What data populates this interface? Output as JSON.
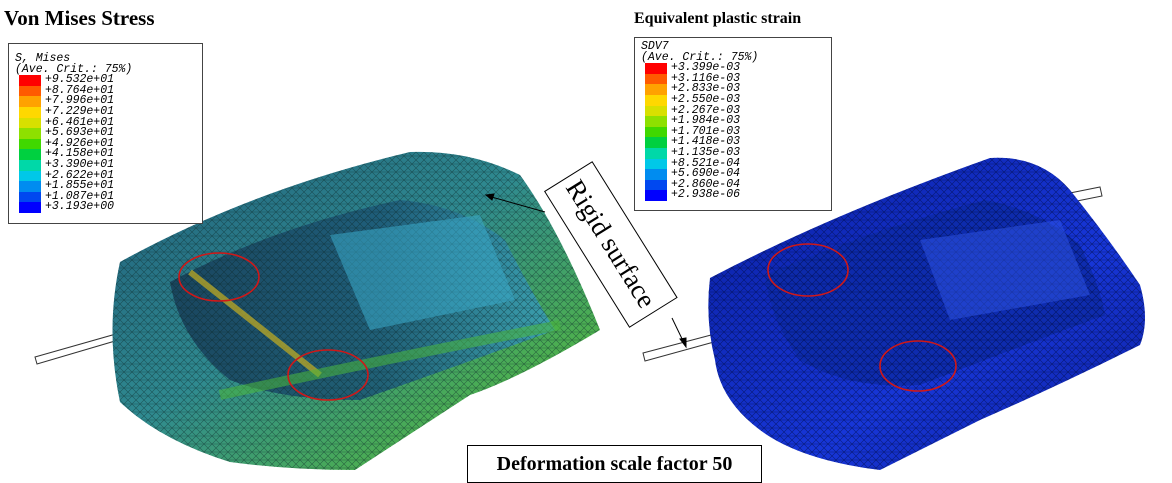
{
  "left_panel": {
    "title": "Von Mises Stress",
    "legend": {
      "header_line1": "S, Mises",
      "header_line2": "(Ave. Crit.: 75%)",
      "entries": [
        "+9.532e+01",
        "+8.764e+01",
        "+7.996e+01",
        "+7.229e+01",
        "+6.461e+01",
        "+5.693e+01",
        "+4.926e+01",
        "+4.158e+01",
        "+3.390e+01",
        "+2.622e+01",
        "+1.855e+01",
        "+1.087e+01",
        "+3.193e+00"
      ]
    }
  },
  "right_panel": {
    "title": "Equivalent plastic strain",
    "legend": {
      "header_line1": "SDV7",
      "header_line2": "(Ave. Crit.: 75%)",
      "entries": [
        "+3.399e-03",
        "+3.116e-03",
        "+2.833e-03",
        "+2.550e-03",
        "+2.267e-03",
        "+1.984e-03",
        "+1.701e-03",
        "+1.418e-03",
        "+1.135e-03",
        "+8.521e-04",
        "+5.690e-04",
        "+2.860e-04",
        "+2.938e-06"
      ]
    }
  },
  "callout_label": "Rigid surface",
  "footer_label": "Deformation scale factor 50",
  "colors": {
    "contour_scale": [
      "#ff0000",
      "#ff5a00",
      "#ffa200",
      "#ffd800",
      "#d8e000",
      "#8ee000",
      "#40d800",
      "#00d040",
      "#00d8a8",
      "#00c8e8",
      "#008cf0",
      "#0048f0",
      "#0000ff"
    ],
    "highlight_circle": "#d01818",
    "left_mesh": "#2e8a8a",
    "right_mesh": "#1a2fc8"
  }
}
